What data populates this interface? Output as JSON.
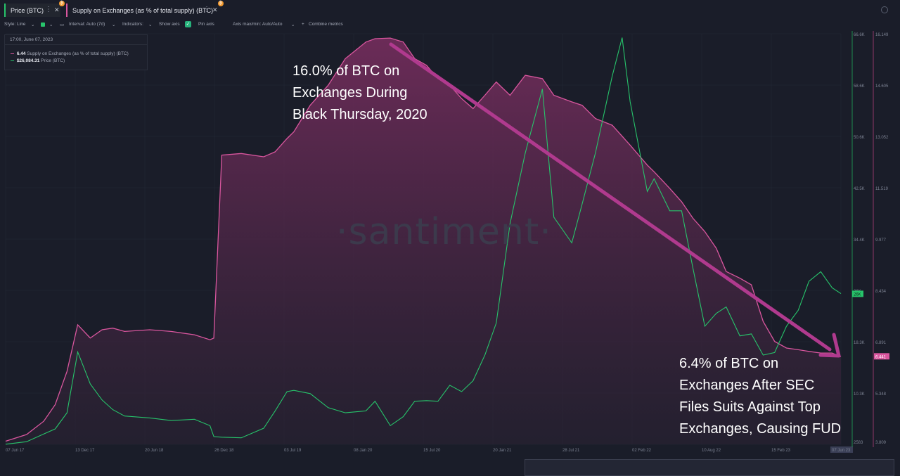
{
  "tabs": [
    {
      "label": "Price (BTC)",
      "badge": "₿"
    },
    {
      "label": "Supply on Exchanges (as % of total supply) (BTC)",
      "badge": "₿"
    }
  ],
  "toolbar": {
    "style": "Style: Line",
    "interval": "Interval: Auto (7d)",
    "indicators": "Indicators:",
    "show_axis": "Show axis",
    "pin_axis": "Pin axis",
    "axis_mode": "Axis max/min: Auto/Auto",
    "combine": "Combine metrics",
    "combine_plus": "+"
  },
  "tooltip": {
    "date": "17:00, June 07, 2023",
    "supply_value": "6.44",
    "supply_label": "Supply on Exchanges (as % of total supply) (BTC)",
    "price_value": "$26,084.31",
    "price_label": "Price (BTC)"
  },
  "watermark": "·santiment·",
  "annotations": {
    "top": [
      "16.0% of BTC on",
      "Exchanges During",
      "Black Thursday, 2020"
    ],
    "bottom": [
      "6.4% of BTC on",
      "Exchanges After SEC",
      "Files Suits Against Top",
      "Exchanges, Causing FUD"
    ]
  },
  "colors": {
    "background": "#1a1d29",
    "price": "#27c46b",
    "supply": "#d9569e",
    "arrow": "#b03a8e",
    "grid": "#242836"
  },
  "chart_data": {
    "type": "line",
    "x_tick_labels": [
      "07 Jun 17",
      "13 Dec 17",
      "20 Jun 18",
      "26 Dec 18",
      "03 Jul 19",
      "08 Jan 20",
      "15 Jul 20",
      "20 Jan 21",
      "28 Jul 21",
      "02 Feb 22",
      "10 Aug 22",
      "15 Feb 23",
      "07 Jun 23"
    ],
    "price_axis": {
      "ticks": [
        "2583",
        "10.3K",
        "18.3K",
        "26K",
        "34.4K",
        "42.5K",
        "50.6K",
        "58.6K",
        "66.6K"
      ],
      "current_label": "26K",
      "range": [
        2583,
        66600
      ]
    },
    "supply_axis": {
      "ticks": [
        "3.809",
        "5.348",
        "6.891",
        "8.434",
        "9.977",
        "11.519",
        "13.052",
        "14.605",
        "16.149"
      ],
      "current_label": "6.441",
      "range": [
        3.805,
        16.149
      ]
    },
    "series": [
      {
        "name": "Supply on Exchanges (as % of total supply) (BTC)",
        "axis": "right",
        "x": [
          "2017-06-07",
          "2017-08-01",
          "2017-09-15",
          "2017-10-15",
          "2017-11-15",
          "2017-12-13",
          "2018-01-15",
          "2018-02-15",
          "2018-03-15",
          "2018-04-15",
          "2018-06-20",
          "2018-08-15",
          "2018-10-15",
          "2018-11-25",
          "2018-12-05",
          "2018-12-26",
          "2019-02-15",
          "2019-04-15",
          "2019-05-15",
          "2019-06-15",
          "2019-07-03",
          "2019-08-15",
          "2019-10-01",
          "2019-11-15",
          "2020-01-08",
          "2020-02-01",
          "2020-03-12",
          "2020-04-15",
          "2020-05-15",
          "2020-06-15",
          "2020-07-15",
          "2020-08-15",
          "2020-09-15",
          "2020-10-15",
          "2020-11-15",
          "2020-12-15",
          "2021-01-20",
          "2021-03-01",
          "2021-04-15",
          "2021-05-15",
          "2021-07-01",
          "2021-07-28",
          "2021-09-01",
          "2021-10-15",
          "2021-12-01",
          "2022-01-15",
          "2022-02-02",
          "2022-03-15",
          "2022-04-15",
          "2022-05-15",
          "2022-06-15",
          "2022-07-15",
          "2022-08-10",
          "2022-09-15",
          "2022-10-15",
          "2022-11-15",
          "2022-12-15",
          "2023-01-15",
          "2023-02-15",
          "2023-03-15",
          "2023-04-15",
          "2023-05-15",
          "2023-06-07"
        ],
        "values": [
          3.9,
          4.1,
          4.5,
          5.0,
          6.0,
          7.4,
          7.0,
          7.25,
          7.3,
          7.2,
          7.25,
          7.2,
          7.1,
          6.95,
          7.0,
          12.5,
          12.55,
          12.45,
          12.6,
          13.0,
          13.2,
          14.0,
          14.6,
          15.4,
          15.9,
          16.0,
          16.02,
          15.9,
          15.4,
          15.2,
          14.8,
          14.6,
          14.2,
          13.9,
          14.3,
          14.7,
          14.3,
          14.9,
          14.8,
          14.3,
          14.1,
          14.0,
          13.6,
          13.4,
          12.8,
          12.2,
          12.0,
          11.5,
          11.1,
          10.6,
          10.2,
          9.7,
          9.0,
          8.8,
          8.6,
          7.5,
          6.9,
          6.7,
          6.65,
          6.6,
          6.55,
          6.55,
          6.44
        ]
      },
      {
        "name": "Price (BTC)",
        "axis": "left",
        "x": [
          "2017-06-07",
          "2017-08-01",
          "2017-09-15",
          "2017-10-15",
          "2017-11-15",
          "2017-12-13",
          "2018-01-15",
          "2018-02-15",
          "2018-03-15",
          "2018-04-15",
          "2018-06-20",
          "2018-08-15",
          "2018-10-15",
          "2018-11-25",
          "2018-12-05",
          "2018-12-26",
          "2019-02-15",
          "2019-04-15",
          "2019-05-15",
          "2019-06-15",
          "2019-07-03",
          "2019-08-15",
          "2019-10-01",
          "2019-11-15",
          "2020-01-08",
          "2020-02-01",
          "2020-03-12",
          "2020-04-15",
          "2020-05-15",
          "2020-06-15",
          "2020-07-15",
          "2020-08-15",
          "2020-09-15",
          "2020-10-15",
          "2020-11-15",
          "2020-12-15",
          "2021-01-20",
          "2021-03-01",
          "2021-04-15",
          "2021-05-15",
          "2021-07-01",
          "2021-07-28",
          "2021-09-01",
          "2021-10-15",
          "2021-11-10",
          "2021-12-01",
          "2022-01-15",
          "2022-02-02",
          "2022-03-15",
          "2022-04-15",
          "2022-05-15",
          "2022-06-15",
          "2022-07-15",
          "2022-08-10",
          "2022-09-15",
          "2022-10-15",
          "2022-11-15",
          "2022-12-15",
          "2023-01-15",
          "2023-02-15",
          "2023-03-15",
          "2023-04-15",
          "2023-05-15",
          "2023-06-07"
        ],
        "values": [
          2600,
          3000,
          4200,
          5000,
          7500,
          17000,
          12000,
          9500,
          8000,
          7000,
          6700,
          6300,
          6500,
          5500,
          3800,
          3700,
          3600,
          5100,
          7800,
          10800,
          11000,
          10500,
          8300,
          7500,
          7800,
          9300,
          5500,
          6900,
          9300,
          9400,
          9300,
          11800,
          10800,
          12500,
          16500,
          21500,
          37000,
          48000,
          58000,
          38000,
          34000,
          40000,
          48000,
          60000,
          66000,
          56000,
          42000,
          44000,
          39000,
          39000,
          30000,
          21000,
          23000,
          24000,
          19500,
          19800,
          16500,
          16900,
          21000,
          23500,
          28000,
          29500,
          27000,
          26084
        ]
      }
    ]
  }
}
